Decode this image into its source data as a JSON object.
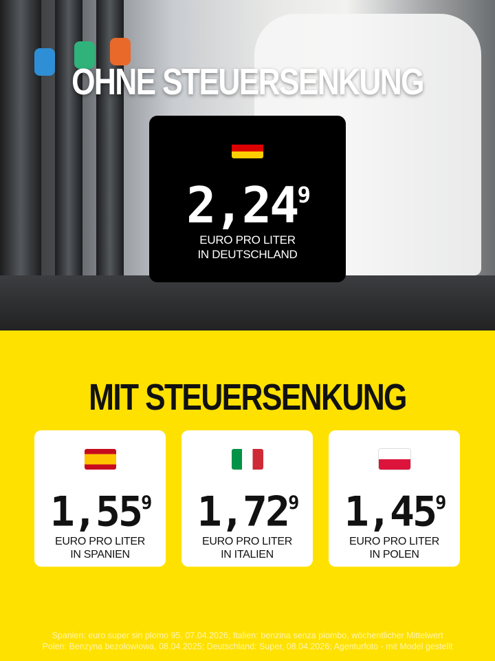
{
  "top": {
    "title": "OHNE STEUERSENKUNG",
    "germany": {
      "flag": "germany-flag",
      "price_main": "2,24",
      "price_sup": "9",
      "unit_line1": "EURO PRO LITER",
      "unit_line2": "IN DEUTSCHLAND"
    }
  },
  "bottom": {
    "title": "MIT STEUERSENKUNG",
    "cards": [
      {
        "flag": "spain-flag",
        "price_main": "1,55",
        "price_sup": "9",
        "unit_line1": "EURO PRO LITER",
        "unit_line2": "IN SPANIEN"
      },
      {
        "flag": "italy-flag",
        "price_main": "1,72",
        "price_sup": "9",
        "unit_line1": "EURO PRO LITER",
        "unit_line2": "IN ITALIEN"
      },
      {
        "flag": "poland-flag",
        "price_main": "1,45",
        "price_sup": "9",
        "unit_line1": "EURO PRO LITER",
        "unit_line2": "IN POLEN"
      }
    ]
  },
  "footer": {
    "line1": "Spanien: euro super sin plomo 95, 07.04.2026; Italien: benzina senza piombo, wöchentlicher Mittelwert",
    "line2": "Polen: Benzyna bezolowiowa, 08.04.2025; Deutschland: Super, 08.04.2026; Agenturfoto - mit Model gestellt"
  },
  "colors": {
    "background": "#FFE100",
    "box": "#000000",
    "card": "#FFFFFF"
  }
}
